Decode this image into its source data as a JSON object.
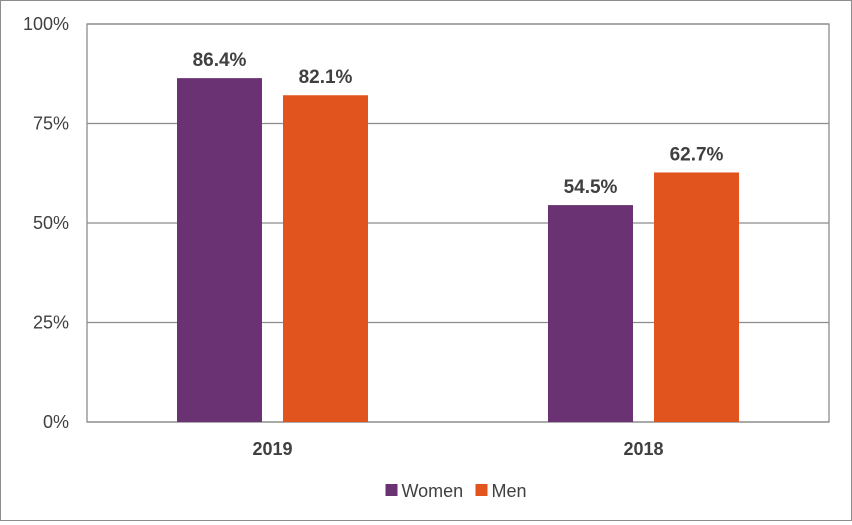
{
  "chart_data": {
    "type": "bar",
    "categories": [
      "2019",
      "2018"
    ],
    "series": [
      {
        "name": "Women",
        "values": [
          86.4,
          54.5
        ],
        "labels": [
          "86.4%",
          "54.5%"
        ],
        "color": "#6a3272"
      },
      {
        "name": "Men",
        "values": [
          82.1,
          62.7
        ],
        "labels": [
          "82.1%",
          "62.7%"
        ],
        "color": "#e2541e"
      }
    ],
    "yticks": [
      "0%",
      "25%",
      "50%",
      "75%",
      "100%"
    ],
    "ylim": [
      0,
      100
    ],
    "grid": true,
    "legend": "bottom",
    "colors": {
      "grid": "#8c8c8c",
      "text": "#404040"
    }
  }
}
